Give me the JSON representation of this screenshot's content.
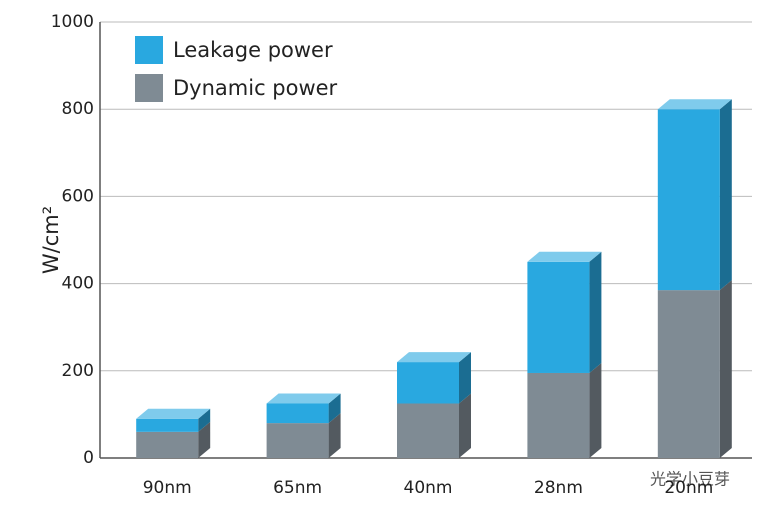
{
  "chart_data": {
    "type": "bar",
    "stacked": true,
    "three_d": true,
    "y_label": "W/cm²",
    "categories": [
      "90nm",
      "65nm",
      "40nm",
      "28nm",
      "20nm"
    ],
    "series": [
      {
        "name": "Leakage power",
        "color": "#29a8e0",
        "values": [
          30,
          45,
          95,
          255,
          415
        ]
      },
      {
        "name": "Dynamic power",
        "color": "#7f8b94",
        "values": [
          60,
          80,
          125,
          195,
          385
        ]
      }
    ],
    "ylim": [
      0,
      1000
    ],
    "yticks": [
      0,
      200,
      400,
      600,
      800,
      1000
    ],
    "grid": true,
    "legend": "top-left",
    "watermark": "光学小豆芽"
  }
}
